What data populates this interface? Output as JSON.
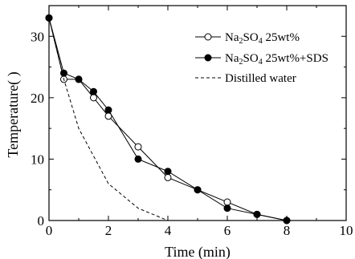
{
  "chart_data": {
    "type": "line",
    "title": "",
    "xlabel": "Time (min)",
    "ylabel": "Temperature(   )",
    "xlim": [
      0,
      10
    ],
    "ylim": [
      0,
      35
    ],
    "xticks": [
      0,
      2,
      4,
      6,
      8,
      10
    ],
    "yticks": [
      0,
      10,
      20,
      30
    ],
    "grid": false,
    "legend_position": "top-right",
    "series": [
      {
        "name": "Na2SO4 25wt%",
        "legend": {
          "prefix": "Na",
          "sub": "2",
          "rest": "SO",
          "sub2": "4",
          "suffix": " 25wt%"
        },
        "marker": "open-circle",
        "line": "solid",
        "x": [
          0,
          0.5,
          1,
          1.5,
          2,
          3,
          4,
          5,
          6,
          7,
          8
        ],
        "y": [
          33,
          23,
          23,
          20,
          17,
          12,
          7,
          5,
          3,
          1,
          0
        ]
      },
      {
        "name": "Na2SO4 25wt%+SDS",
        "legend": {
          "prefix": "Na",
          "sub": "2",
          "rest": "SO",
          "sub2": "4",
          "suffix": " 25wt%+SDS"
        },
        "marker": "filled-circle",
        "line": "solid",
        "x": [
          0,
          0.5,
          1,
          1.5,
          2,
          3,
          4,
          5,
          6,
          7,
          8
        ],
        "y": [
          33,
          24,
          23,
          21,
          18,
          10,
          8,
          5,
          2,
          1,
          0
        ]
      },
      {
        "name": "Distilled water",
        "legend": {
          "prefix": "Distilled water",
          "sub": "",
          "rest": "",
          "sub2": "",
          "suffix": ""
        },
        "marker": "none",
        "line": "dashed",
        "x": [
          0,
          0.5,
          1,
          2,
          3,
          4
        ],
        "y": [
          33,
          23,
          15,
          6,
          2,
          0
        ]
      }
    ]
  }
}
